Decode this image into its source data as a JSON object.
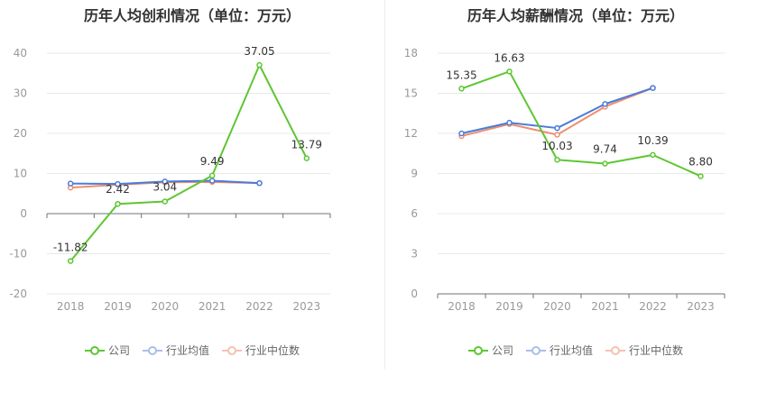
{
  "colors": {
    "company": "#5ec632",
    "industry_avg": "#4a7cd9",
    "industry_median": "#ef8e6e"
  },
  "chart_data": [
    {
      "type": "line",
      "title": "历年人均创利情况（单位：万元）",
      "categories": [
        "2018",
        "2019",
        "2020",
        "2021",
        "2022",
        "2023"
      ],
      "ylim": [
        -20,
        40
      ],
      "yticks": [
        "40",
        "30",
        "20",
        "10",
        "0",
        "-10",
        "-20"
      ],
      "series": [
        {
          "name": "公司",
          "values": [
            -11.82,
            2.42,
            3.04,
            9.49,
            37.05,
            13.79
          ],
          "labels": [
            "-11.82",
            "2.42",
            "3.04",
            "9.49",
            "37.05",
            "13.79"
          ]
        },
        {
          "name": "行业均值",
          "values": [
            7.5,
            7.4,
            8.0,
            8.2,
            7.6,
            null
          ]
        },
        {
          "name": "行业中位数",
          "values": [
            6.5,
            7.2,
            7.8,
            7.9,
            7.6,
            null
          ]
        }
      ],
      "legend": [
        "公司",
        "行业均值",
        "行业中位数"
      ]
    },
    {
      "type": "line",
      "title": "历年人均薪酬情况（单位：万元）",
      "categories": [
        "2018",
        "2019",
        "2020",
        "2021",
        "2022",
        "2023"
      ],
      "ylim": [
        0,
        18
      ],
      "yticks": [
        "18",
        "15",
        "12",
        "9",
        "6",
        "3",
        "0"
      ],
      "series": [
        {
          "name": "公司",
          "values": [
            15.35,
            16.63,
            10.03,
            9.74,
            10.39,
            8.8
          ],
          "labels": [
            "15.35",
            "16.63",
            "10.03",
            "9.74",
            "10.39",
            "8.80"
          ]
        },
        {
          "name": "行业均值",
          "values": [
            12.0,
            12.8,
            12.4,
            14.2,
            15.4,
            null
          ]
        },
        {
          "name": "行业中位数",
          "values": [
            11.8,
            12.7,
            11.9,
            14.0,
            15.4,
            null
          ]
        }
      ],
      "legend": [
        "公司",
        "行业均值",
        "行业中位数"
      ]
    }
  ]
}
